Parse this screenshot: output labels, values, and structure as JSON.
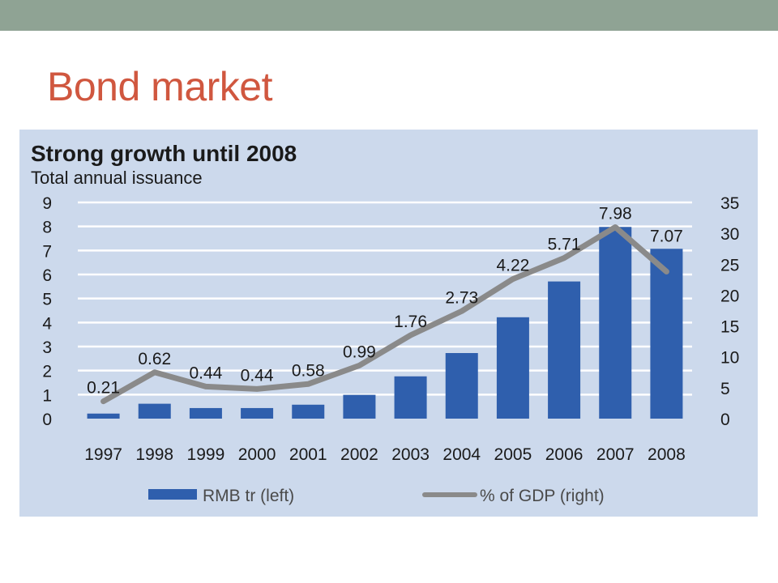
{
  "slide": {
    "title": "Bond market"
  },
  "colors": {
    "top_bar": "#8fa394",
    "title": "#d0573f",
    "panel": "#ccd9ec",
    "bar": "#2f5fad",
    "line": "#8a8a8a",
    "grid": "#ffffff"
  },
  "chart_data": {
    "type": "bar",
    "title": "Strong growth until 2008",
    "subtitle": "Total annual issuance",
    "categories": [
      "1997",
      "1998",
      "1999",
      "2000",
      "2001",
      "2002",
      "2003",
      "2004",
      "2005",
      "2006",
      "2007",
      "2008"
    ],
    "series": [
      {
        "name": "RMB tr (left)",
        "type": "bar",
        "axis": "left",
        "values": [
          0.21,
          0.62,
          0.44,
          0.44,
          0.58,
          0.99,
          1.76,
          2.73,
          4.22,
          5.71,
          7.98,
          7.07
        ],
        "labels": [
          "0.21",
          "0.62",
          "0.44",
          "0.44",
          "0.58",
          "0.99",
          "1.76",
          "2.73",
          "4.22",
          "5.71",
          "7.98",
          "7.07"
        ]
      },
      {
        "name": "% of GDP (right)",
        "type": "line",
        "axis": "right",
        "values": [
          2.8,
          7.5,
          5.2,
          4.8,
          5.6,
          8.6,
          13.5,
          17.4,
          22.6,
          26.0,
          31.0,
          23.8
        ]
      }
    ],
    "y_left": {
      "min": 0,
      "max": 9,
      "ticks": [
        "0",
        "1",
        "2",
        "3",
        "4",
        "5",
        "6",
        "7",
        "8",
        "9"
      ]
    },
    "y_right": {
      "min": 0,
      "max": 35,
      "ticks": [
        "0",
        "5",
        "10",
        "15",
        "20",
        "25",
        "30",
        "35"
      ]
    },
    "grid": true,
    "legend_position": "bottom"
  }
}
